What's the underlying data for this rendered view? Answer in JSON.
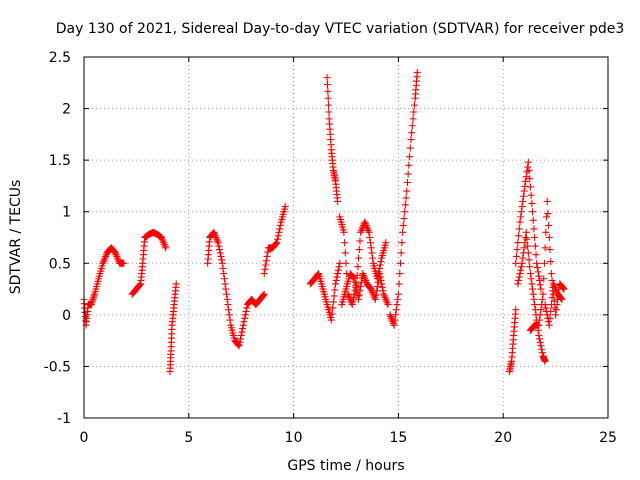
{
  "chart_data": {
    "type": "scatter",
    "title": "Day 130 of 2021, Sidereal Day-to-day VTEC variation (SDTVAR) for receiver pde3",
    "xlabel": "GPS time / hours",
    "ylabel": "SDTVAR / TECUs",
    "xlim": [
      0,
      25
    ],
    "ylim": [
      -1,
      2.5
    ],
    "xticks": [
      0,
      5,
      10,
      15,
      20,
      25
    ],
    "yticks": [
      -1,
      -0.5,
      0,
      0.5,
      1,
      1.5,
      2,
      2.5
    ],
    "xtick_labels": [
      "0",
      "5",
      "10",
      "15",
      "20",
      "25"
    ],
    "ytick_labels": [
      "-1",
      "-0.5",
      "0",
      "0.5",
      "1",
      "1.5",
      "2",
      "2.5"
    ],
    "grid": true,
    "marker": "+",
    "color": "#ff0000",
    "segments": [
      {
        "name": "arc-1",
        "x": [
          0.0,
          0.1,
          0.2,
          0.35,
          0.5,
          0.7,
          0.9,
          1.1,
          1.3,
          1.5,
          1.7,
          1.9
        ],
        "y": [
          0.15,
          -0.1,
          0.1,
          0.1,
          0.2,
          0.35,
          0.5,
          0.6,
          0.65,
          0.6,
          0.5,
          0.5
        ]
      },
      {
        "name": "arc-2",
        "x": [
          2.3,
          2.5,
          2.7,
          2.8,
          2.9,
          3.1,
          3.3,
          3.5,
          3.7,
          3.9
        ],
        "y": [
          0.2,
          0.25,
          0.3,
          0.5,
          0.75,
          0.78,
          0.8,
          0.78,
          0.75,
          0.65
        ]
      },
      {
        "name": "arc-3",
        "x": [
          4.1,
          4.15,
          4.2,
          4.3,
          4.4
        ],
        "y": [
          -0.55,
          -0.35,
          -0.1,
          0.1,
          0.3
        ]
      },
      {
        "name": "arc-4",
        "x": [
          5.9,
          6.0,
          6.2,
          6.4,
          6.6,
          6.8,
          7.0,
          7.2,
          7.4,
          7.6,
          7.8,
          8.0,
          8.2,
          8.4,
          8.6
        ],
        "y": [
          0.5,
          0.75,
          0.8,
          0.7,
          0.5,
          0.2,
          -0.1,
          -0.25,
          -0.3,
          -0.1,
          0.1,
          0.15,
          0.1,
          0.15,
          0.2
        ]
      },
      {
        "name": "arc-5",
        "x": [
          8.6,
          8.8,
          9.0,
          9.2,
          9.4,
          9.6
        ],
        "y": [
          0.4,
          0.65,
          0.65,
          0.7,
          0.9,
          1.05
        ]
      },
      {
        "name": "arc-6",
        "x": [
          10.8,
          11.0,
          11.2,
          11.4,
          11.6,
          11.8,
          12.0,
          12.2
        ],
        "y": [
          0.3,
          0.35,
          0.4,
          0.25,
          0.1,
          -0.05,
          0.3,
          0.5
        ]
      },
      {
        "name": "arc-7",
        "x": [
          11.6,
          11.7,
          11.8,
          11.9,
          12.0,
          12.1
        ],
        "y": [
          2.3,
          1.9,
          1.6,
          1.4,
          1.3,
          1.1
        ]
      },
      {
        "name": "arc-8",
        "x": [
          12.2,
          12.4,
          12.6,
          12.8,
          13.0,
          13.2,
          13.4,
          13.6,
          13.8,
          14.0,
          14.2,
          14.4
        ],
        "y": [
          0.95,
          0.8,
          0.2,
          0.1,
          0.3,
          0.8,
          0.9,
          0.8,
          0.5,
          0.35,
          0.55,
          0.7
        ]
      },
      {
        "name": "arc-9",
        "x": [
          12.3,
          12.5,
          12.7,
          12.9,
          13.1,
          13.3,
          13.5,
          13.7,
          13.9,
          14.1,
          14.3,
          14.5
        ],
        "y": [
          0.1,
          0.25,
          0.4,
          0.35,
          0.15,
          0.4,
          0.3,
          0.25,
          0.15,
          0.4,
          0.2,
          0.1
        ]
      },
      {
        "name": "arc-10",
        "x": [
          14.6,
          14.8,
          15.0,
          15.2,
          15.4,
          15.6,
          15.8,
          15.9
        ],
        "y": [
          0.0,
          -0.1,
          0.2,
          0.8,
          1.2,
          1.7,
          2.1,
          2.35
        ]
      },
      {
        "name": "arc-11",
        "x": [
          20.3,
          20.4,
          20.5,
          20.6
        ],
        "y": [
          -0.55,
          -0.45,
          -0.2,
          0.05
        ]
      },
      {
        "name": "arc-12",
        "x": [
          20.6,
          20.8,
          21.0,
          21.2,
          21.4,
          21.6,
          21.8
        ],
        "y": [
          0.5,
          0.9,
          1.2,
          1.48,
          1.0,
          0.5,
          0.25
        ]
      },
      {
        "name": "arc-13",
        "x": [
          20.7,
          20.9,
          21.1,
          21.3,
          21.5,
          21.7,
          21.9,
          22.0
        ],
        "y": [
          0.3,
          0.5,
          0.8,
          0.4,
          0.1,
          -0.2,
          -0.4,
          -0.45
        ]
      },
      {
        "name": "arc-14",
        "x": [
          21.3,
          21.5,
          21.7,
          21.9,
          22.1,
          22.3,
          22.5,
          22.7,
          22.9
        ],
        "y": [
          -0.15,
          -0.1,
          -0.1,
          0.2,
          1.1,
          0.4,
          0.0,
          0.3,
          0.25
        ]
      },
      {
        "name": "arc-15",
        "x": [
          22.0,
          22.2,
          22.4,
          22.6,
          22.8
        ],
        "y": [
          0.1,
          -0.1,
          0.3,
          0.2,
          0.15
        ]
      }
    ]
  }
}
